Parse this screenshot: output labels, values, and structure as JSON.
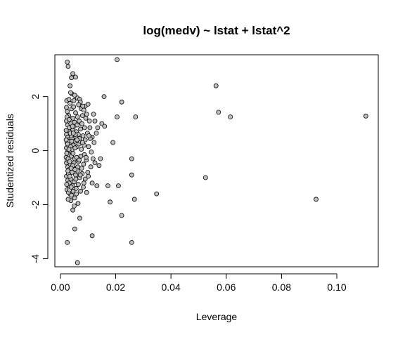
{
  "chart_data": {
    "type": "scatter",
    "title": "log(medv) ~ lstat + lstat^2",
    "xlabel": "Leverage",
    "ylabel": "Studentized residuals",
    "xlim": [
      -0.002,
      0.115
    ],
    "ylim": [
      -4.3,
      3.55
    ],
    "x_ticks": [
      0.0,
      0.02,
      0.04,
      0.06,
      0.08,
      0.1
    ],
    "x_tick_labels": [
      "0.00",
      "0.02",
      "0.04",
      "0.06",
      "0.08",
      "0.10"
    ],
    "y_ticks": [
      -4,
      -2,
      0,
      2
    ],
    "y_tick_labels": [
      "-4",
      "-2",
      "0",
      "2"
    ],
    "grid": false,
    "marker_fill": "#bebebe",
    "marker_stroke": "#000000",
    "points": [
      [
        0.0025,
        3.28
      ],
      [
        0.0028,
        3.12
      ],
      [
        0.0205,
        3.37
      ],
      [
        0.004,
        2.7
      ],
      [
        0.0045,
        2.85
      ],
      [
        0.0055,
        2.72
      ],
      [
        0.0035,
        2.4
      ],
      [
        0.0042,
        2.1
      ],
      [
        0.0052,
        2.05
      ],
      [
        0.0062,
        1.95
      ],
      [
        0.007,
        1.9
      ],
      [
        0.0072,
        1.8
      ],
      [
        0.009,
        1.65
      ],
      [
        0.01,
        1.72
      ],
      [
        0.012,
        1.35
      ],
      [
        0.0125,
        1.1
      ],
      [
        0.0158,
        2.0
      ],
      [
        0.015,
        1.0
      ],
      [
        0.016,
        0.9
      ],
      [
        0.0222,
        1.8
      ],
      [
        0.0205,
        1.25
      ],
      [
        0.0272,
        1.25
      ],
      [
        0.013,
        0.65
      ],
      [
        0.0115,
        0.5
      ],
      [
        0.019,
        0.3
      ],
      [
        0.0145,
        -0.3
      ],
      [
        0.014,
        -0.55
      ],
      [
        0.0258,
        -0.3
      ],
      [
        0.0258,
        -0.9
      ],
      [
        0.021,
        -1.3
      ],
      [
        0.0172,
        -1.3
      ],
      [
        0.0132,
        -1.3
      ],
      [
        0.0115,
        -1.2
      ],
      [
        0.0348,
        -1.6
      ],
      [
        0.0268,
        -1.8
      ],
      [
        0.018,
        -1.9
      ],
      [
        0.0222,
        -2.4
      ],
      [
        0.0115,
        -3.15
      ],
      [
        0.0258,
        -3.4
      ],
      [
        0.0025,
        -3.4
      ],
      [
        0.0062,
        -4.15
      ],
      [
        0.0052,
        -2.9
      ],
      [
        0.007,
        -2.5
      ],
      [
        0.0045,
        -2.2
      ],
      [
        0.005,
        -2.05
      ],
      [
        0.0038,
        -1.85
      ],
      [
        0.0028,
        -1.8
      ],
      [
        0.0035,
        -1.6
      ],
      [
        0.0563,
        2.4
      ],
      [
        0.0572,
        1.42
      ],
      [
        0.0615,
        1.25
      ],
      [
        0.1105,
        1.28
      ],
      [
        0.0525,
        -1.0
      ],
      [
        0.0925,
        -1.8
      ],
      [
        0.0022,
        1.6
      ],
      [
        0.0025,
        1.45
      ],
      [
        0.003,
        1.3
      ],
      [
        0.0035,
        1.75
      ],
      [
        0.0041,
        1.55
      ],
      [
        0.0048,
        1.62
      ],
      [
        0.0055,
        1.4
      ],
      [
        0.0062,
        1.25
      ],
      [
        0.0068,
        1.1
      ],
      [
        0.0075,
        1.55
      ],
      [
        0.008,
        1.3
      ],
      [
        0.0085,
        1.5
      ],
      [
        0.0095,
        1.35
      ],
      [
        0.0105,
        1.1
      ],
      [
        0.0022,
        1.1
      ],
      [
        0.0026,
        0.95
      ],
      [
        0.0032,
        0.85
      ],
      [
        0.0038,
        1.0
      ],
      [
        0.0044,
        0.75
      ],
      [
        0.005,
        0.9
      ],
      [
        0.0058,
        0.7
      ],
      [
        0.0065,
        0.6
      ],
      [
        0.0073,
        0.8
      ],
      [
        0.0082,
        0.55
      ],
      [
        0.009,
        0.4
      ],
      [
        0.0098,
        0.65
      ],
      [
        0.0108,
        0.45
      ],
      [
        0.0022,
        0.6
      ],
      [
        0.0027,
        0.5
      ],
      [
        0.0031,
        0.4
      ],
      [
        0.0036,
        0.3
      ],
      [
        0.0042,
        0.45
      ],
      [
        0.0047,
        0.2
      ],
      [
        0.0053,
        0.35
      ],
      [
        0.006,
        0.15
      ],
      [
        0.0067,
        0.25
      ],
      [
        0.0076,
        0.05
      ],
      [
        0.0086,
        0.2
      ],
      [
        0.0022,
        0.1
      ],
      [
        0.0026,
        -0.05
      ],
      [
        0.003,
        -0.15
      ],
      [
        0.0035,
        0.0
      ],
      [
        0.004,
        -0.2
      ],
      [
        0.0046,
        -0.1
      ],
      [
        0.0052,
        -0.3
      ],
      [
        0.0059,
        -0.25
      ],
      [
        0.0066,
        -0.4
      ],
      [
        0.0074,
        -0.2
      ],
      [
        0.0084,
        -0.5
      ],
      [
        0.0094,
        -0.35
      ],
      [
        0.0022,
        -0.45
      ],
      [
        0.0026,
        -0.6
      ],
      [
        0.0031,
        -0.7
      ],
      [
        0.0036,
        -0.5
      ],
      [
        0.0042,
        -0.8
      ],
      [
        0.0048,
        -0.65
      ],
      [
        0.0055,
        -0.9
      ],
      [
        0.0062,
        -0.75
      ],
      [
        0.007,
        -1.0
      ],
      [
        0.0079,
        -0.85
      ],
      [
        0.009,
        -1.05
      ],
      [
        0.0022,
        -0.95
      ],
      [
        0.0027,
        -1.1
      ],
      [
        0.0032,
        -1.2
      ],
      [
        0.0038,
        -1.05
      ],
      [
        0.0044,
        -1.3
      ],
      [
        0.005,
        -1.15
      ],
      [
        0.0057,
        -1.4
      ],
      [
        0.0065,
        -1.25
      ],
      [
        0.0073,
        -1.5
      ],
      [
        0.0083,
        -1.35
      ],
      [
        0.0095,
        -1.55
      ],
      [
        0.0024,
        -1.45
      ],
      [
        0.0029,
        -1.55
      ],
      [
        0.0034,
        -1.35
      ],
      [
        0.004,
        -1.65
      ],
      [
        0.0046,
        -1.5
      ],
      [
        0.0052,
        -1.75
      ],
      [
        0.0058,
        -1.6
      ],
      [
        0.0064,
        -1.95
      ],
      [
        0.0024,
        0.3
      ],
      [
        0.0029,
        0.2
      ],
      [
        0.0033,
        0.7
      ],
      [
        0.0039,
        0.55
      ],
      [
        0.0045,
        1.2
      ],
      [
        0.0051,
        1.05
      ],
      [
        0.0056,
        0.5
      ],
      [
        0.0061,
        0.95
      ],
      [
        0.0071,
        0.35
      ],
      [
        0.0078,
        1.0
      ],
      [
        0.0088,
        0.85
      ],
      [
        0.0102,
        0.15
      ],
      [
        0.0112,
        -0.05
      ],
      [
        0.0122,
        0.3
      ],
      [
        0.0135,
        0.85
      ],
      [
        0.0021,
        -0.25
      ],
      [
        0.0025,
        -0.35
      ],
      [
        0.0029,
        -0.85
      ],
      [
        0.0034,
        -0.95
      ],
      [
        0.0037,
        0.15
      ],
      [
        0.0043,
        0.05
      ],
      [
        0.0049,
        -0.45
      ],
      [
        0.0054,
        0.6
      ],
      [
        0.0063,
        -0.6
      ],
      [
        0.0069,
        0.45
      ],
      [
        0.0077,
        -0.65
      ],
      [
        0.0087,
        -0.15
      ],
      [
        0.0099,
        -0.8
      ],
      [
        0.011,
        -0.6
      ],
      [
        0.0125,
        -0.45
      ],
      [
        0.0023,
        1.85
      ],
      [
        0.0031,
        1.9
      ],
      [
        0.0037,
        2.15
      ],
      [
        0.0049,
        1.85
      ],
      [
        0.0066,
        1.7
      ],
      [
        0.0081,
        1.65
      ],
      [
        0.0092,
        1.2
      ],
      [
        0.0107,
        0.85
      ],
      [
        0.0023,
        -1.25
      ],
      [
        0.0027,
        -0.75
      ],
      [
        0.0033,
        -1.45
      ],
      [
        0.0039,
        -1.35
      ],
      [
        0.0045,
        -0.55
      ],
      [
        0.0056,
        -1.05
      ],
      [
        0.0068,
        -0.35
      ],
      [
        0.0085,
        -1.2
      ],
      [
        0.0101,
        -0.95
      ],
      [
        0.0021,
        0.75
      ],
      [
        0.0024,
        1.25
      ],
      [
        0.0028,
        0.35
      ],
      [
        0.0032,
        1.15
      ],
      [
        0.0036,
        0.65
      ],
      [
        0.0041,
        0.35
      ],
      [
        0.0047,
        0.65
      ],
      [
        0.0053,
        0.1
      ],
      [
        0.0021,
        0.4
      ],
      [
        0.0023,
        -0.1
      ],
      [
        0.0026,
        0.25
      ],
      [
        0.0028,
        -0.3
      ],
      [
        0.0031,
        0.05
      ],
      [
        0.0034,
        -0.4
      ],
      [
        0.0039,
        -0.65
      ],
      [
        0.0044,
        0.9
      ],
      [
        0.0053,
        -0.7
      ],
      [
        0.006,
        0.4
      ],
      [
        0.0072,
        -0.9
      ],
      [
        0.008,
        0.3
      ],
      [
        0.0093,
        -0.25
      ],
      [
        0.0103,
        0.55
      ],
      [
        0.0118,
        -0.3
      ]
    ]
  }
}
